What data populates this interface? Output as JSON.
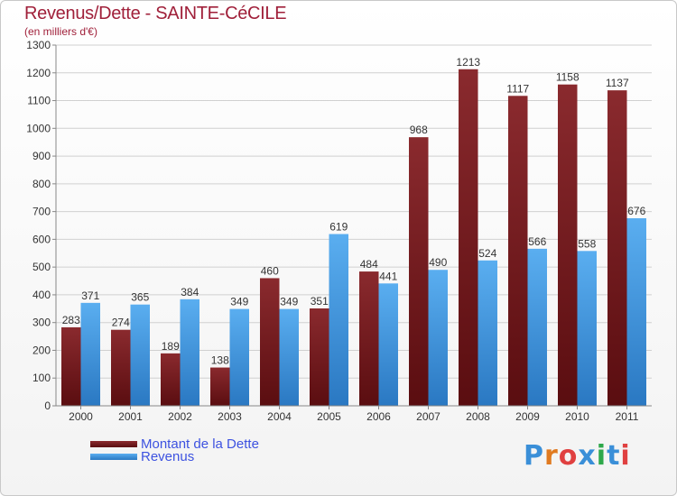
{
  "title": "Revenus/Dette - SAINTE-CéCILE",
  "subtitle": "(en milliers d'€)",
  "colors": {
    "dette_top": "#8a2a2e",
    "dette_bottom": "#5a0d10",
    "revenus_top": "#5aaef0",
    "revenus_bottom": "#2a78c2",
    "title": "#a0203a",
    "legend_text": "#3d52e0",
    "grid": "#d0d0d0"
  },
  "legend": {
    "dette": "Montant de la Dette",
    "revenus": "Revenus"
  },
  "logo": {
    "text": "Proxiti",
    "letter_colors": [
      "#3a8fd8",
      "#e07a20",
      "#e04040",
      "#3a8fd8",
      "#2ea84a",
      "#3a8fd8",
      "#e04040"
    ]
  },
  "chart_data": {
    "type": "bar",
    "title": "Revenus/Dette - SAINTE-CéCILE",
    "ylabel": "(en milliers d'€)",
    "categories": [
      "2000",
      "2001",
      "2002",
      "2003",
      "2004",
      "2005",
      "2006",
      "2007",
      "2008",
      "2009",
      "2010",
      "2011"
    ],
    "series": [
      {
        "name": "Montant de la Dette",
        "values": [
          283,
          274,
          189,
          138,
          460,
          351,
          484,
          968,
          1213,
          1117,
          1158,
          1137
        ]
      },
      {
        "name": "Revenus",
        "values": [
          371,
          365,
          384,
          349,
          349,
          619,
          441,
          490,
          524,
          566,
          558,
          676
        ]
      }
    ],
    "ylim": [
      0,
      1300
    ],
    "ytick_step": 100,
    "grid": true,
    "legend_position": "bottom-left"
  }
}
